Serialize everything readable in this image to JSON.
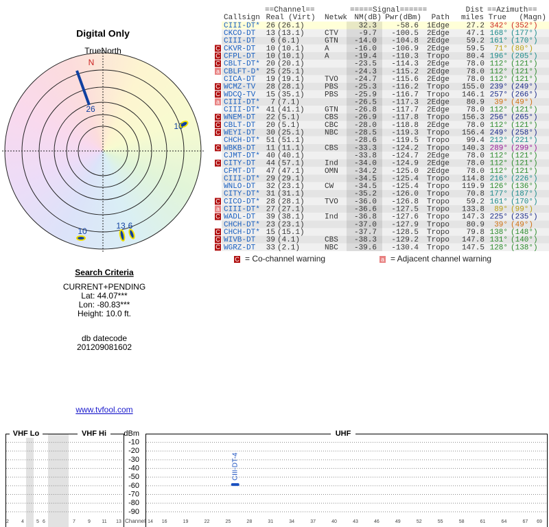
{
  "report": {
    "title": "Digital Only",
    "north_label": "TrueNorth",
    "north_mark": "N",
    "criteria_title": "Search Criteria",
    "criteria": [
      "CURRENT+PENDING",
      "Lat: 44.07***",
      "Lon: -80.83***",
      "Height: 10.0 ft."
    ],
    "datecode_label": "db datecode",
    "datecode": "201209081602",
    "link": "www.tvfool.com"
  },
  "polar": {
    "labels": [
      "26",
      "10",
      "13",
      "6",
      "10"
    ]
  },
  "table": {
    "group_headers": [
      "==Channel==",
      "=====Signal======",
      "Dist",
      "==Azimuth=="
    ],
    "headers": [
      "Callsign",
      "Real",
      "(Virt)",
      "Netwk",
      "NM(dB)",
      "Pwr(dBm)",
      "Path",
      "miles",
      "True",
      "(Magn)"
    ],
    "rows": [
      {
        "callsign": "CIII-DT*",
        "real": "26",
        "virt": "(26.1)",
        "nm": "32.3",
        "pwr": "-58.6",
        "path": "1Edge",
        "dist": "27.2",
        "az_true": "342°",
        "az_magn": "(352°)",
        "color": "#cc2222"
      },
      {
        "callsign": "CKCO-DT",
        "real": "13",
        "virt": "(13.1)",
        "netwk": "CTV",
        "nm": "-9.7",
        "pwr": "-100.5",
        "path": "2Edge",
        "dist": "47.1",
        "az_true": "168°",
        "az_magn": "(177°)",
        "color": "#1a8a8a"
      },
      {
        "callsign": "CIII-DT",
        "real": "6",
        "virt": "(6.1)",
        "netwk": "GTN",
        "nm": "-14.0",
        "pwr": "-104.8",
        "path": "2Edge",
        "dist": "59.2",
        "az_true": "161°",
        "az_magn": "(170°)",
        "color": "#1a8a8a"
      },
      {
        "warn": "C",
        "callsign": "CKVR-DT",
        "real": "10",
        "virt": "(10.1)",
        "netwk": "A",
        "nm": "-16.0",
        "pwr": "-106.9",
        "path": "2Edge",
        "dist": "59.5",
        "az_true": "71°",
        "az_magn": "(80°)",
        "color": "#b8a010"
      },
      {
        "warn": "C",
        "callsign": "CFPL-DT",
        "real": "10",
        "virt": "(10.1)",
        "netwk": "A",
        "nm": "-19.4",
        "pwr": "-110.3",
        "path": "Tropo",
        "dist": "80.4",
        "az_true": "196°",
        "az_magn": "(205°)",
        "color": "#1a8a8a"
      },
      {
        "warn": "C",
        "callsign": "CBLT-DT*",
        "real": "20",
        "virt": "(20.1)",
        "nm": "-23.5",
        "pwr": "-114.3",
        "path": "2Edge",
        "dist": "78.0",
        "az_true": "112°",
        "az_magn": "(121°)",
        "color": "#2a8a2a"
      },
      {
        "warn": "a",
        "callsign": "CBLFT-D*",
        "real": "25",
        "virt": "(25.1)",
        "nm": "-24.3",
        "pwr": "-115.2",
        "path": "2Edge",
        "dist": "78.0",
        "az_true": "112°",
        "az_magn": "(121°)",
        "color": "#2a8a2a"
      },
      {
        "callsign": "CICA-DT",
        "real": "19",
        "virt": "(19.1)",
        "netwk": "TVO",
        "nm": "-24.7",
        "pwr": "-115.6",
        "path": "2Edge",
        "dist": "78.0",
        "az_true": "112°",
        "az_magn": "(121°)",
        "color": "#2a8a2a"
      },
      {
        "warn": "C",
        "callsign": "WCMZ-TV",
        "real": "28",
        "virt": "(28.1)",
        "netwk": "PBS",
        "nm": "-25.3",
        "pwr": "-116.2",
        "path": "Tropo",
        "dist": "155.0",
        "az_true": "239°",
        "az_magn": "(249°)",
        "color": "#1a2a8a"
      },
      {
        "warn": "C",
        "callsign": "WDCQ-TV",
        "real": "15",
        "virt": "(35.1)",
        "netwk": "PBS",
        "nm": "-25.9",
        "pwr": "-116.7",
        "path": "Tropo",
        "dist": "146.1",
        "az_true": "257°",
        "az_magn": "(266°)",
        "color": "#1a2a8a"
      },
      {
        "warn": "a",
        "callsign": "CIII-DT*",
        "real": "7",
        "virt": "(7.1)",
        "nm": "-26.5",
        "pwr": "-117.3",
        "path": "2Edge",
        "dist": "80.9",
        "az_true": "39°",
        "az_magn": "(49°)",
        "color": "#d07010"
      },
      {
        "callsign": "CIII-DT*",
        "real": "41",
        "virt": "(41.1)",
        "netwk": "GTN",
        "nm": "-26.8",
        "pwr": "-117.7",
        "path": "2Edge",
        "dist": "78.0",
        "az_true": "112°",
        "az_magn": "(121°)",
        "color": "#2a8a2a"
      },
      {
        "warn": "C",
        "callsign": "WNEM-DT",
        "real": "22",
        "virt": "(5.1)",
        "netwk": "CBS",
        "nm": "-26.9",
        "pwr": "-117.8",
        "path": "Tropo",
        "dist": "156.3",
        "az_true": "256°",
        "az_magn": "(265°)",
        "color": "#1a2a8a"
      },
      {
        "warn": "C",
        "callsign": "CBLT-DT",
        "real": "20",
        "virt": "(5.1)",
        "netwk": "CBC",
        "nm": "-28.0",
        "pwr": "-118.8",
        "path": "2Edge",
        "dist": "78.0",
        "az_true": "112°",
        "az_magn": "(121°)",
        "color": "#2a8a2a"
      },
      {
        "warn": "C",
        "callsign": "WEYI-DT",
        "real": "30",
        "virt": "(25.1)",
        "netwk": "NBC",
        "nm": "-28.5",
        "pwr": "-119.3",
        "path": "Tropo",
        "dist": "156.4",
        "az_true": "249°",
        "az_magn": "(258°)",
        "color": "#1a2a8a"
      },
      {
        "callsign": "CHCH-DT*",
        "real": "51",
        "virt": "(51.1)",
        "nm": "-28.6",
        "pwr": "-119.5",
        "path": "Tropo",
        "dist": "99.4",
        "az_true": "212°",
        "az_magn": "(221°)",
        "color": "#1a8a8a"
      },
      {
        "warn": "C",
        "callsign": "WBKB-DT",
        "real": "11",
        "virt": "(11.1)",
        "netwk": "CBS",
        "nm": "-33.3",
        "pwr": "-124.2",
        "path": "Tropo",
        "dist": "140.3",
        "az_true": "289°",
        "az_magn": "(299°)",
        "color": "#9a1a9a"
      },
      {
        "callsign": "CJMT-DT*",
        "real": "40",
        "virt": "(40.1)",
        "nm": "-33.8",
        "pwr": "-124.7",
        "path": "2Edge",
        "dist": "78.0",
        "az_true": "112°",
        "az_magn": "(121°)",
        "color": "#2a8a2a"
      },
      {
        "warn": "C",
        "callsign": "CITY-DT",
        "real": "44",
        "virt": "(57.1)",
        "netwk": "Ind",
        "nm": "-34.0",
        "pwr": "-124.9",
        "path": "2Edge",
        "dist": "78.0",
        "az_true": "112°",
        "az_magn": "(121°)",
        "color": "#2a8a2a"
      },
      {
        "callsign": "CFMT-DT",
        "real": "47",
        "virt": "(47.1)",
        "netwk": "OMN",
        "nm": "-34.2",
        "pwr": "-125.0",
        "path": "2Edge",
        "dist": "78.0",
        "az_true": "112°",
        "az_magn": "(121°)",
        "color": "#2a8a2a"
      },
      {
        "callsign": "CIII-DT*",
        "real": "29",
        "virt": "(29.1)",
        "nm": "-34.5",
        "pwr": "-125.4",
        "path": "Tropo",
        "dist": "114.8",
        "az_true": "216°",
        "az_magn": "(226°)",
        "color": "#1a8a8a"
      },
      {
        "callsign": "WNLO-DT",
        "real": "32",
        "virt": "(23.1)",
        "netwk": "CW",
        "nm": "-34.5",
        "pwr": "-125.4",
        "path": "Tropo",
        "dist": "119.9",
        "az_true": "126°",
        "az_magn": "(136°)",
        "color": "#2a8a2a"
      },
      {
        "callsign": "CITY-DT*",
        "real": "31",
        "virt": "(31.1)",
        "nm": "-35.2",
        "pwr": "-126.0",
        "path": "Tropo",
        "dist": "70.8",
        "az_true": "177°",
        "az_magn": "(187°)",
        "color": "#1a8a8a"
      },
      {
        "warn": "C",
        "callsign": "CICO-DT*",
        "real": "28",
        "virt": "(28.1)",
        "netwk": "TVO",
        "nm": "-36.0",
        "pwr": "-126.8",
        "path": "Tropo",
        "dist": "59.2",
        "az_true": "161°",
        "az_magn": "(170°)",
        "color": "#1a8a8a"
      },
      {
        "warn": "a",
        "callsign": "CIII-DT*",
        "real": "27",
        "virt": "(27.1)",
        "nm": "-36.6",
        "pwr": "-127.5",
        "path": "Tropo",
        "dist": "133.8",
        "az_true": "89°",
        "az_magn": "(99°)",
        "color": "#b8a010"
      },
      {
        "warn": "C",
        "callsign": "WADL-DT",
        "real": "39",
        "virt": "(38.1)",
        "netwk": "Ind",
        "nm": "-36.8",
        "pwr": "-127.6",
        "path": "Tropo",
        "dist": "147.3",
        "az_true": "225°",
        "az_magn": "(235°)",
        "color": "#1a2a8a"
      },
      {
        "callsign": "CHCH-DT*",
        "real": "23",
        "virt": "(23.1)",
        "nm": "-37.0",
        "pwr": "-127.9",
        "path": "Tropo",
        "dist": "80.9",
        "az_true": "39°",
        "az_magn": "(49°)",
        "color": "#d07010"
      },
      {
        "warn": "C",
        "callsign": "CHCH-DT*",
        "real": "15",
        "virt": "(15.1)",
        "nm": "-37.7",
        "pwr": "-128.5",
        "path": "Tropo",
        "dist": "79.8",
        "az_true": "138°",
        "az_magn": "(148°)",
        "color": "#2a8a2a"
      },
      {
        "warn": "C",
        "callsign": "WIVB-DT",
        "real": "39",
        "virt": "(4.1)",
        "netwk": "CBS",
        "nm": "-38.3",
        "pwr": "-129.2",
        "path": "Tropo",
        "dist": "147.8",
        "az_true": "131°",
        "az_magn": "(140°)",
        "color": "#2a8a2a"
      },
      {
        "warn": "C",
        "callsign": "WGRZ-DT",
        "real": "33",
        "virt": "(2.1)",
        "netwk": "NBC",
        "nm": "-39.6",
        "pwr": "-130.4",
        "path": "Tropo",
        "dist": "147.5",
        "az_true": "128°",
        "az_magn": "(138°)",
        "color": "#2a8a2a"
      }
    ],
    "legend": [
      {
        "key": "C",
        "text": "= Co-channel warning"
      },
      {
        "key": "a",
        "text": "= Adjacent channel warning"
      }
    ]
  },
  "spectrum": {
    "bands": [
      "VHF Lo",
      "VHF Hi",
      "UHF"
    ],
    "unit": "dBm",
    "channel_label": "Channel",
    "ylim": [
      0,
      -100
    ],
    "yticks": [
      -10,
      -20,
      -30,
      -40,
      -50,
      -60,
      -70,
      -80,
      -90
    ],
    "vhf_ticks": [
      2,
      4,
      5,
      6,
      7,
      9,
      11,
      13
    ],
    "xlim": [
      14,
      69
    ],
    "uhf_ticks": [
      14,
      16,
      19,
      22,
      25,
      28,
      31,
      34,
      37,
      40,
      43,
      46,
      49,
      52,
      55,
      58,
      61,
      64,
      67,
      69
    ],
    "signals": [
      {
        "label": "CIII-DT-4",
        "channel": 26,
        "dbm": -58.6
      }
    ]
  }
}
